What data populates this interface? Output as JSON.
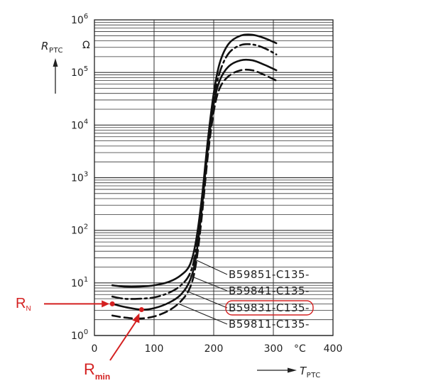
{
  "chart_data": {
    "type": "line",
    "xlabel": "T",
    "xlabel_sub": "PTC",
    "xunit": "°C",
    "ylabel": "R",
    "ylabel_sub": "PTC",
    "yunit": "Ω",
    "xlim": [
      0,
      400
    ],
    "ylim": [
      1,
      1000000
    ],
    "yscale": "log",
    "grid": true,
    "x_ticks": [
      "0",
      "100",
      "200",
      "300",
      "400"
    ],
    "y_ticks": [
      {
        "base": "10",
        "exp": "0"
      },
      {
        "base": "10",
        "exp": "1"
      },
      {
        "base": "10",
        "exp": "2"
      },
      {
        "base": "10",
        "exp": "3"
      },
      {
        "base": "10",
        "exp": "4"
      },
      {
        "base": "10",
        "exp": "5"
      },
      {
        "base": "10",
        "exp": "6"
      }
    ],
    "series": [
      {
        "name": "B59851-C135-",
        "style": "solid",
        "points": [
          [
            30,
            9
          ],
          [
            50,
            8.5
          ],
          [
            75,
            8.5
          ],
          [
            100,
            9
          ],
          [
            125,
            10.5
          ],
          [
            145,
            14
          ],
          [
            160,
            22
          ],
          [
            170,
            60
          ],
          [
            180,
            400
          ],
          [
            190,
            5000
          ],
          [
            200,
            40000
          ],
          [
            210,
            150000
          ],
          [
            225,
            350000
          ],
          [
            245,
            500000
          ],
          [
            265,
            520000
          ],
          [
            285,
            450000
          ],
          [
            305,
            360000
          ]
        ]
      },
      {
        "name": "B59841-C135-",
        "style": "dashdot",
        "points": [
          [
            30,
            5.5
          ],
          [
            50,
            5
          ],
          [
            75,
            5
          ],
          [
            100,
            5.3
          ],
          [
            125,
            6.5
          ],
          [
            145,
            9
          ],
          [
            160,
            15
          ],
          [
            170,
            40
          ],
          [
            180,
            300
          ],
          [
            190,
            4000
          ],
          [
            200,
            30000
          ],
          [
            210,
            100000
          ],
          [
            225,
            230000
          ],
          [
            245,
            330000
          ],
          [
            265,
            340000
          ],
          [
            285,
            290000
          ],
          [
            305,
            220000
          ]
        ]
      },
      {
        "name": "B59831-C135-",
        "style": "solid",
        "highlighted": true,
        "points": [
          [
            30,
            4
          ],
          [
            50,
            3.5
          ],
          [
            79,
            3.1
          ],
          [
            100,
            3.3
          ],
          [
            125,
            4.2
          ],
          [
            145,
            6
          ],
          [
            160,
            11
          ],
          [
            170,
            30
          ],
          [
            180,
            250
          ],
          [
            190,
            3500
          ],
          [
            200,
            25000
          ],
          [
            210,
            70000
          ],
          [
            225,
            130000
          ],
          [
            245,
            170000
          ],
          [
            265,
            170000
          ],
          [
            285,
            140000
          ],
          [
            305,
            110000
          ]
        ]
      },
      {
        "name": "B59811-C135-",
        "style": "dashed",
        "points": [
          [
            30,
            2.4
          ],
          [
            50,
            2.2
          ],
          [
            75,
            2.1
          ],
          [
            100,
            2.3
          ],
          [
            125,
            3
          ],
          [
            145,
            4.5
          ],
          [
            160,
            8
          ],
          [
            170,
            22
          ],
          [
            180,
            180
          ],
          [
            190,
            2500
          ],
          [
            200,
            18000
          ],
          [
            210,
            50000
          ],
          [
            225,
            85000
          ],
          [
            245,
            110000
          ],
          [
            265,
            110000
          ],
          [
            285,
            90000
          ],
          [
            305,
            70000
          ]
        ]
      }
    ],
    "annotations": [
      {
        "label": "R",
        "sub": "N",
        "series": "B59831-C135-",
        "point": [
          30,
          4
        ]
      },
      {
        "label": "R",
        "sub": "min",
        "series": "B59831-C135-",
        "point": [
          79,
          3.1
        ]
      }
    ],
    "colors": {
      "curves": "#111111",
      "grid": "#333333",
      "annotation": "#d42020"
    }
  }
}
